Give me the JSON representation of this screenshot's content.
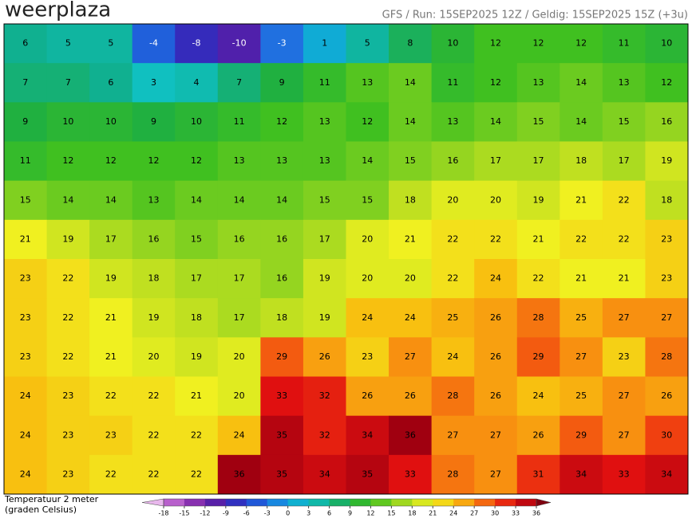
{
  "header": {
    "logo": "weerplaza",
    "run_info": "GFS / Run: 15SEP2025 12Z / Geldig: 15SEP2025 15Z (+3u)"
  },
  "legend": {
    "title": "Temperatuur 2 meter",
    "subtitle": "(graden Celsius)",
    "ticks": [
      -18,
      -15,
      -12,
      -9,
      -6,
      -3,
      0,
      3,
      6,
      9,
      12,
      15,
      18,
      21,
      24,
      27,
      30,
      33,
      36
    ],
    "colors": [
      "#d080d8",
      "#a040c0",
      "#7020a0",
      "#4020b0",
      "#2040d0",
      "#2070e0",
      "#10a0e0",
      "#10c0c0",
      "#10b090",
      "#20b040",
      "#40c020",
      "#80d020",
      "#c0e020",
      "#f0f020",
      "#f8c010",
      "#f89010",
      "#f04010",
      "#e01010",
      "#a00010"
    ]
  },
  "map": {
    "temperatures": [
      [
        6,
        5,
        5,
        -4,
        -8,
        -10,
        -3,
        1,
        5,
        8,
        10,
        12,
        12,
        12,
        11,
        10
      ],
      [
        7,
        7,
        6,
        3,
        4,
        7,
        9,
        11,
        13,
        14,
        11,
        12,
        13,
        14,
        13,
        12
      ],
      [
        9,
        10,
        10,
        9,
        10,
        11,
        12,
        13,
        12,
        14,
        13,
        14,
        15,
        14,
        15,
        16
      ],
      [
        11,
        12,
        12,
        12,
        12,
        13,
        13,
        13,
        14,
        15,
        16,
        17,
        17,
        18,
        17,
        19
      ],
      [
        15,
        14,
        14,
        13,
        14,
        14,
        14,
        15,
        15,
        18,
        20,
        20,
        19,
        21,
        22,
        18
      ],
      [
        21,
        19,
        17,
        16,
        15,
        16,
        16,
        17,
        20,
        21,
        22,
        22,
        21,
        22,
        22,
        23
      ],
      [
        23,
        22,
        19,
        18,
        17,
        17,
        16,
        19,
        20,
        20,
        22,
        24,
        22,
        21,
        21,
        23
      ],
      [
        23,
        22,
        21,
        19,
        18,
        17,
        18,
        19,
        24,
        24,
        25,
        26,
        28,
        25,
        27,
        27
      ],
      [
        23,
        22,
        21,
        20,
        19,
        20,
        29,
        26,
        23,
        27,
        24,
        26,
        29,
        27,
        23,
        28
      ],
      [
        24,
        23,
        22,
        22,
        21,
        20,
        33,
        32,
        26,
        26,
        28,
        26,
        24,
        25,
        27,
        26
      ],
      [
        24,
        23,
        23,
        22,
        22,
        24,
        35,
        32,
        34,
        36,
        27,
        27,
        26,
        29,
        27,
        30
      ],
      [
        24,
        23,
        22,
        22,
        22,
        36,
        35,
        34,
        35,
        33,
        28,
        27,
        31,
        34,
        33,
        34
      ]
    ]
  }
}
